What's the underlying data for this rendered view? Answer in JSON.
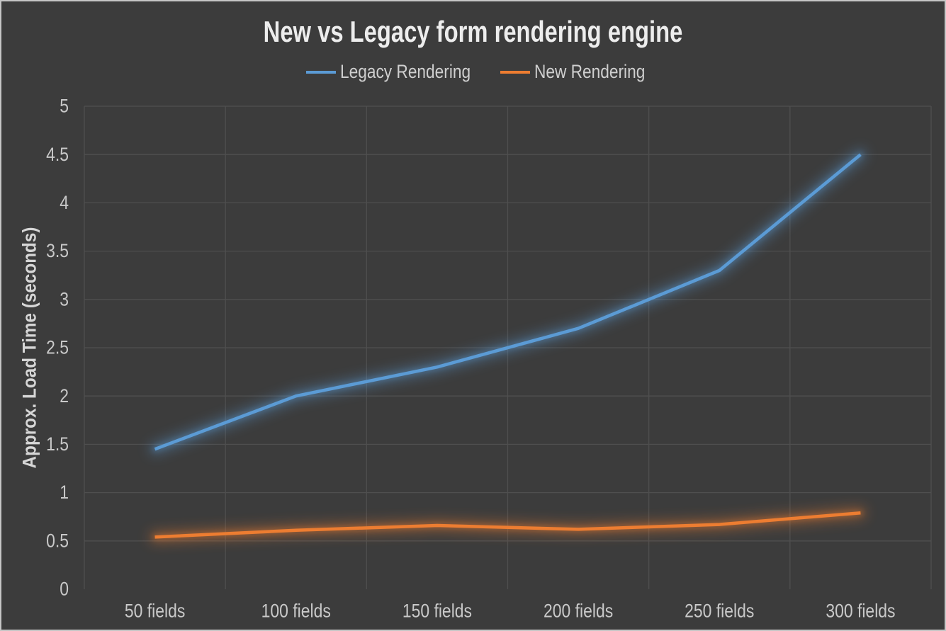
{
  "chart_data": {
    "type": "line",
    "title": "New vs Legacy form rendering engine",
    "ylabel": "Approx. Load Time (seconds)",
    "xlabel": "",
    "categories": [
      "50 fields",
      "100 fields",
      "150 fields",
      "200 fields",
      "250 fields",
      "300 fields"
    ],
    "series": [
      {
        "name": "Legacy Rendering",
        "color": "#5B9BD5",
        "values": [
          1.45,
          2.0,
          2.3,
          2.7,
          3.3,
          4.5
        ]
      },
      {
        "name": "New Rendering",
        "color": "#ED7D31",
        "values": [
          0.54,
          0.61,
          0.66,
          0.62,
          0.67,
          0.79
        ]
      }
    ],
    "ylim": [
      0,
      5
    ],
    "ytick_step": 0.5,
    "grid": true,
    "legend_position": "top",
    "colors": {
      "background": "#3C3C3C",
      "gridline": "#4F4F4F",
      "tick_label": "#C9C9C9",
      "title": "#EDEDED",
      "legend_label": "#CFCFCF",
      "axis_title": "#D6D6D6"
    }
  }
}
